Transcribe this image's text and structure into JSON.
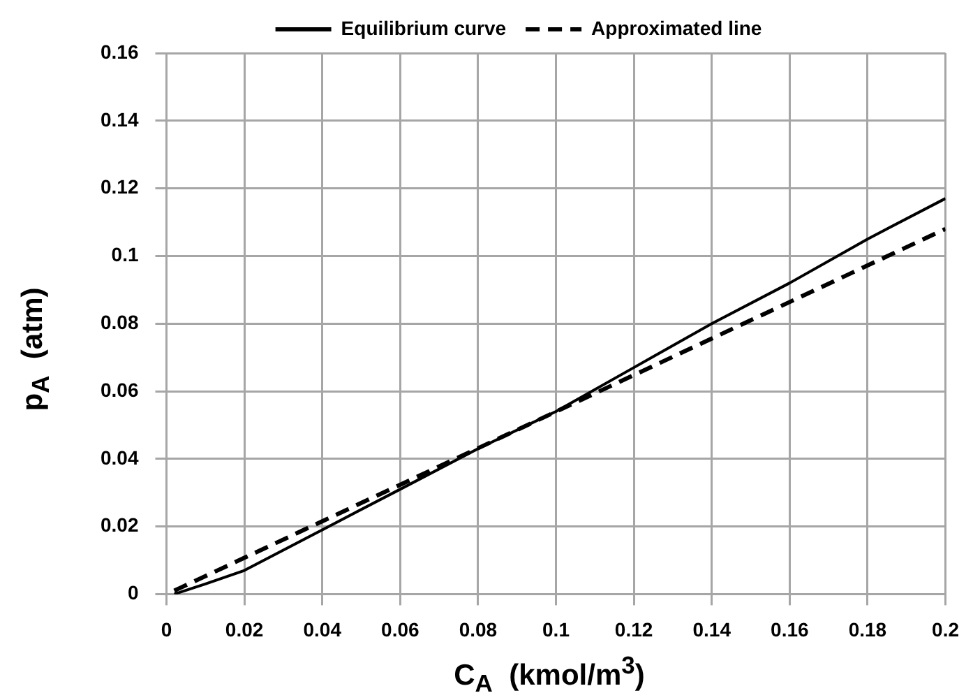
{
  "chart_data": {
    "type": "line",
    "xlabel": "C$_{A}$  (kmol/m$^{3}$)",
    "ylabel": "p$_{A}$  (atm)",
    "xlim": [
      0,
      0.2
    ],
    "xticks": [
      0,
      0.02,
      0.04,
      0.06,
      0.08,
      0.1,
      0.12,
      0.14,
      0.16,
      0.18,
      0.2
    ],
    "ylim": [
      0,
      0.16
    ],
    "yticks": [
      0,
      0.02,
      0.04,
      0.06,
      0.08,
      0.1,
      0.12,
      0.14,
      0.16
    ],
    "grid": true,
    "legend": "top",
    "marker": "none",
    "series": [
      {
        "name": "Equilibrium curve",
        "color": "#000000",
        "line_style": "solid",
        "x": [
          0.002,
          0.01,
          0.02,
          0.04,
          0.06,
          0.08,
          0.1,
          0.12,
          0.14,
          0.16,
          0.18,
          0.2
        ],
        "values": [
          0,
          0.003,
          0.007,
          0.019,
          0.031,
          0.043,
          0.054,
          0.067,
          0.08,
          0.092,
          0.105,
          0.117
        ]
      },
      {
        "name": "Approximated line",
        "color": "#000000",
        "line_style": "dashed",
        "x": [
          0.002,
          0.2
        ],
        "values": [
          0.001,
          0.108
        ]
      }
    ]
  }
}
